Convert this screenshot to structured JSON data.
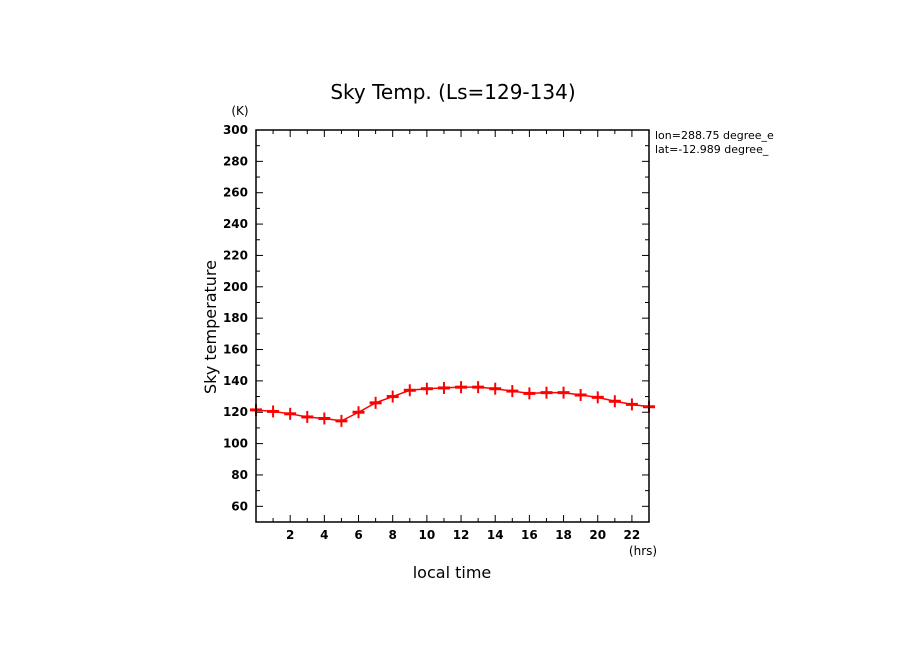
{
  "chart_data": {
    "type": "line",
    "title": "Sky Temp. (Ls=129-134)",
    "xlabel": "local time",
    "ylabel": "Sky temperature",
    "x_unit": "(hrs)",
    "y_unit": "(K)",
    "xlim": [
      0,
      23
    ],
    "ylim": [
      50,
      300
    ],
    "xticks": [
      2,
      4,
      6,
      8,
      10,
      12,
      14,
      16,
      18,
      20,
      22
    ],
    "yticks": [
      60,
      80,
      100,
      120,
      140,
      160,
      180,
      200,
      220,
      240,
      260,
      280,
      300
    ],
    "annotations": [
      "lon=288.75 degree_e",
      "lat=-12.989 degree_"
    ],
    "grid": false,
    "series": [
      {
        "color": "#ff0000",
        "marker": "plus",
        "x": [
          0,
          1,
          2,
          3,
          4,
          5,
          6,
          7,
          8,
          9,
          10,
          11,
          12,
          13,
          14,
          15,
          16,
          17,
          18,
          19,
          20,
          21,
          22,
          23
        ],
        "y": [
          121.5,
          120.5,
          119,
          117,
          116,
          114.5,
          120,
          126,
          130,
          134,
          135,
          135.5,
          136,
          136,
          135,
          133.5,
          132,
          132.5,
          132.5,
          131,
          129.5,
          127,
          125,
          123.5
        ]
      }
    ]
  }
}
